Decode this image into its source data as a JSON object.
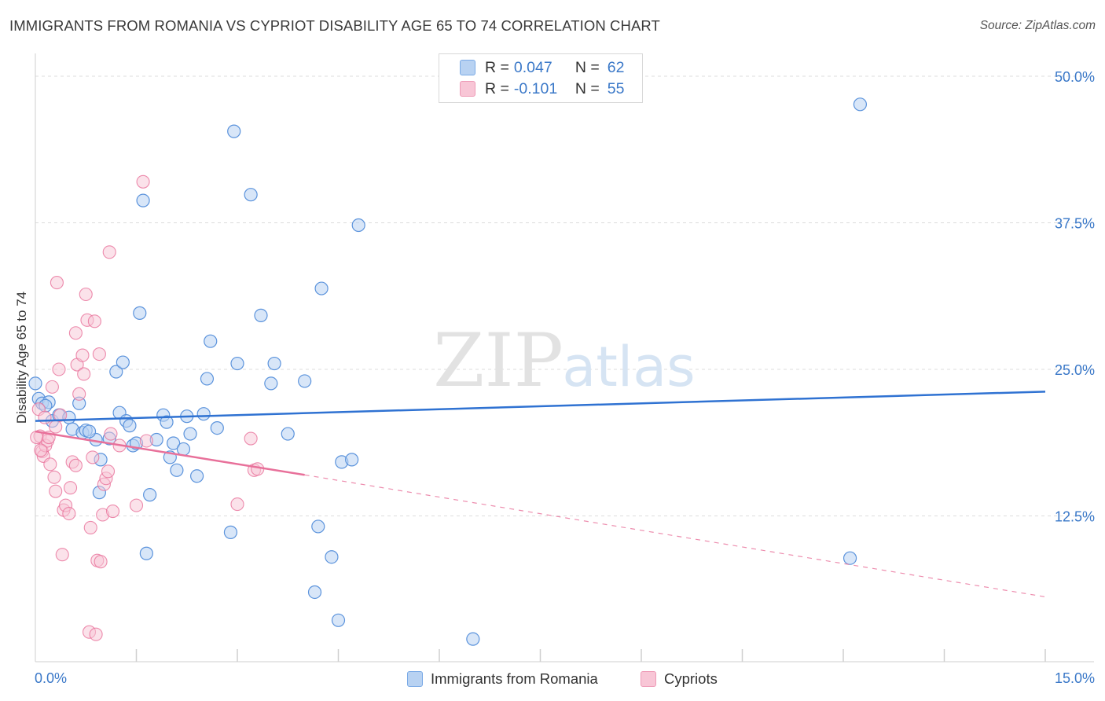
{
  "header": {
    "title": "IMMIGRANTS FROM ROMANIA VS CYPRIOT DISABILITY AGE 65 TO 74 CORRELATION CHART",
    "source": "Source: ZipAtlas.com"
  },
  "watermark": {
    "zip": "ZIP",
    "atlas": "atlas"
  },
  "legend": {
    "rows": [
      {
        "r_label": "R =",
        "r_value": "0.047",
        "n_label": "N =",
        "n_value": "62",
        "fill": "#b8d2f2",
        "stroke": "#7aaae6"
      },
      {
        "r_label": "R =",
        "r_value": "-0.101",
        "n_label": "N =",
        "n_value": "55",
        "fill": "#f8c6d6",
        "stroke": "#ee9ab6"
      }
    ]
  },
  "bottom_legend": {
    "items": [
      {
        "label": "Immigrants from Romania",
        "fill": "#b8d2f2",
        "stroke": "#7aaae6"
      },
      {
        "label": "Cypriots",
        "fill": "#f8c6d6",
        "stroke": "#ee9ab6"
      }
    ]
  },
  "chart_data": {
    "type": "scatter",
    "title": "IMMIGRANTS FROM ROMANIA VS CYPRIOT DISABILITY AGE 65 TO 74 CORRELATION CHART",
    "xlabel": "",
    "ylabel": "Disability Age 65 to 74",
    "xlim": [
      0,
      15
    ],
    "ylim": [
      0,
      50
    ],
    "x_tick_labels": [
      "0.0%",
      "15.0%"
    ],
    "y_ticks": [
      12.5,
      25.0,
      37.5,
      50.0
    ],
    "y_tick_labels": [
      "12.5%",
      "25.0%",
      "37.5%",
      "50.0%"
    ],
    "grid": "horizontal dashed",
    "legend_position": "top-center",
    "series": [
      {
        "name": "Immigrants from Romania",
        "color": "#5b93dc",
        "fill": "#b8d2f2",
        "points": [
          [
            0.05,
            22.5
          ],
          [
            0.1,
            22.1
          ],
          [
            0.2,
            22.2
          ],
          [
            0.25,
            20.6
          ],
          [
            0.35,
            21.1
          ],
          [
            0.5,
            20.9
          ],
          [
            0.55,
            19.9
          ],
          [
            0.65,
            22.1
          ],
          [
            0.7,
            19.6
          ],
          [
            0.75,
            19.8
          ],
          [
            0.9,
            19.0
          ],
          [
            0.95,
            14.5
          ],
          [
            0.97,
            17.3
          ],
          [
            1.1,
            19.1
          ],
          [
            1.2,
            24.8
          ],
          [
            1.3,
            25.6
          ],
          [
            1.25,
            21.3
          ],
          [
            1.35,
            20.6
          ],
          [
            1.4,
            20.2
          ],
          [
            1.45,
            18.5
          ],
          [
            1.5,
            18.7
          ],
          [
            1.55,
            29.8
          ],
          [
            1.6,
            39.4
          ],
          [
            1.65,
            9.3
          ],
          [
            1.7,
            14.3
          ],
          [
            1.8,
            19.0
          ],
          [
            1.9,
            21.1
          ],
          [
            1.95,
            20.5
          ],
          [
            2.0,
            17.5
          ],
          [
            2.05,
            18.7
          ],
          [
            2.1,
            16.4
          ],
          [
            2.2,
            18.2
          ],
          [
            2.25,
            21.0
          ],
          [
            2.3,
            19.5
          ],
          [
            2.4,
            15.9
          ],
          [
            2.5,
            21.2
          ],
          [
            2.55,
            24.2
          ],
          [
            2.6,
            27.4
          ],
          [
            2.7,
            20.0
          ],
          [
            2.9,
            11.1
          ],
          [
            2.95,
            45.3
          ],
          [
            3.0,
            25.5
          ],
          [
            3.2,
            39.9
          ],
          [
            3.35,
            29.6
          ],
          [
            3.5,
            23.8
          ],
          [
            3.55,
            25.5
          ],
          [
            3.75,
            19.5
          ],
          [
            4.0,
            24.0
          ],
          [
            4.15,
            6.0
          ],
          [
            4.2,
            11.6
          ],
          [
            4.25,
            31.9
          ],
          [
            4.4,
            9.0
          ],
          [
            4.5,
            3.6
          ],
          [
            4.55,
            17.1
          ],
          [
            4.7,
            17.3
          ],
          [
            4.8,
            37.3
          ],
          [
            6.5,
            2.0
          ],
          [
            12.1,
            8.9
          ],
          [
            12.25,
            47.6
          ],
          [
            0.0,
            23.8
          ],
          [
            0.15,
            21.9
          ],
          [
            0.8,
            19.7
          ]
        ],
        "trend": {
          "x": [
            0,
            15
          ],
          "y": [
            20.6,
            23.1
          ]
        }
      },
      {
        "name": "Cypriots",
        "color": "#e8709a",
        "fill": "#f8c6d6",
        "points": [
          [
            0.05,
            21.6
          ],
          [
            0.07,
            19.3
          ],
          [
            0.1,
            18.0
          ],
          [
            0.12,
            17.6
          ],
          [
            0.15,
            18.5
          ],
          [
            0.18,
            18.9
          ],
          [
            0.2,
            19.2
          ],
          [
            0.22,
            16.9
          ],
          [
            0.25,
            23.5
          ],
          [
            0.28,
            15.8
          ],
          [
            0.3,
            14.6
          ],
          [
            0.32,
            32.4
          ],
          [
            0.35,
            25.0
          ],
          [
            0.37,
            21.1
          ],
          [
            0.4,
            9.2
          ],
          [
            0.42,
            13.0
          ],
          [
            0.45,
            13.4
          ],
          [
            0.5,
            12.7
          ],
          [
            0.52,
            14.9
          ],
          [
            0.55,
            17.1
          ],
          [
            0.6,
            28.1
          ],
          [
            0.62,
            25.4
          ],
          [
            0.65,
            22.9
          ],
          [
            0.7,
            26.2
          ],
          [
            0.72,
            24.6
          ],
          [
            0.75,
            31.4
          ],
          [
            0.77,
            29.2
          ],
          [
            0.8,
            2.6
          ],
          [
            0.82,
            11.5
          ],
          [
            0.85,
            17.5
          ],
          [
            0.88,
            29.1
          ],
          [
            0.9,
            2.4
          ],
          [
            0.92,
            8.7
          ],
          [
            0.95,
            26.3
          ],
          [
            0.97,
            8.6
          ],
          [
            1.0,
            12.6
          ],
          [
            1.02,
            15.2
          ],
          [
            1.05,
            15.7
          ],
          [
            1.08,
            16.3
          ],
          [
            1.1,
            35.0
          ],
          [
            1.12,
            19.5
          ],
          [
            1.15,
            12.9
          ],
          [
            1.25,
            18.5
          ],
          [
            1.5,
            13.4
          ],
          [
            1.6,
            41.0
          ],
          [
            1.65,
            18.9
          ],
          [
            3.0,
            13.5
          ],
          [
            3.2,
            19.1
          ],
          [
            3.25,
            16.4
          ],
          [
            3.3,
            16.5
          ],
          [
            0.02,
            19.2
          ],
          [
            0.08,
            18.1
          ],
          [
            0.14,
            20.9
          ],
          [
            0.6,
            16.8
          ],
          [
            0.3,
            20.1
          ]
        ],
        "trend": {
          "x": [
            0,
            4.0
          ],
          "y": [
            19.7,
            16.0
          ]
        },
        "trend_extension": {
          "x": [
            4.0,
            15
          ],
          "y": [
            16.0,
            5.6
          ]
        }
      }
    ]
  }
}
